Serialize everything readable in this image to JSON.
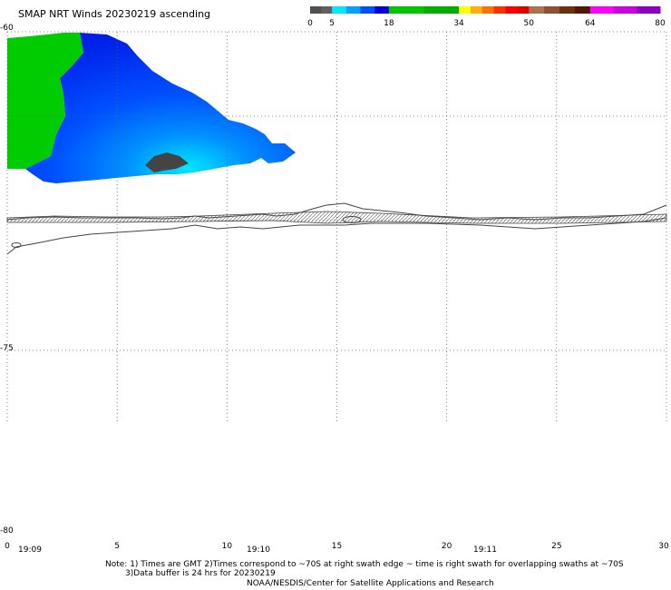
{
  "title": "SMAP NRT Winds 20230219 ascending",
  "colorbar": {
    "labels": [
      "0",
      "5",
      "18",
      "34",
      "50",
      "64",
      "80"
    ],
    "segments": [
      {
        "from": 0,
        "to": 5,
        "colors": [
          "#505050",
          "#606060"
        ]
      },
      {
        "from": 5,
        "to": 18,
        "colors": [
          "#00e8ff",
          "#00a0ff",
          "#0050ff",
          "#0000e0"
        ]
      },
      {
        "from": 18,
        "to": 34,
        "colors": [
          "#00c800",
          "#00b000"
        ]
      },
      {
        "from": 34,
        "to": 50,
        "colors": [
          "#ffff00",
          "#ffb000",
          "#ff7000",
          "#ff3000",
          "#ff0000",
          "#e00000"
        ]
      },
      {
        "from": 50,
        "to": 64,
        "colors": [
          "#b07050",
          "#905030",
          "#703010",
          "#501800"
        ]
      },
      {
        "from": 64,
        "to": 80,
        "colors": [
          "#ff00ff",
          "#d000e0",
          "#9000c0"
        ]
      }
    ]
  },
  "lat_labels": [
    "-60",
    "-75",
    "-80"
  ],
  "lon_labels": [
    "0",
    "5",
    "10",
    "15",
    "20",
    "25",
    "30"
  ],
  "time_labels": [
    "19:09",
    "19:10",
    "19:11"
  ],
  "notes": {
    "line1": "Note: 1) Times are GMT 2)Times correspond to ~70S at right swath edge ~ time is right swath for overlapping swaths at ~70S",
    "line2": "3)Data buffer is 24 hrs for 20230219",
    "line3": "NOAA/NESDIS/Center for Satellite Applications and Research"
  },
  "colors": {
    "green_band": "#00cc00",
    "blue_core": "#0030ff",
    "blue_mid": "#0078ff",
    "cyan_edge": "#00d8ff",
    "land_low": "#444444",
    "coast": "#444444",
    "grid": "#666666"
  }
}
